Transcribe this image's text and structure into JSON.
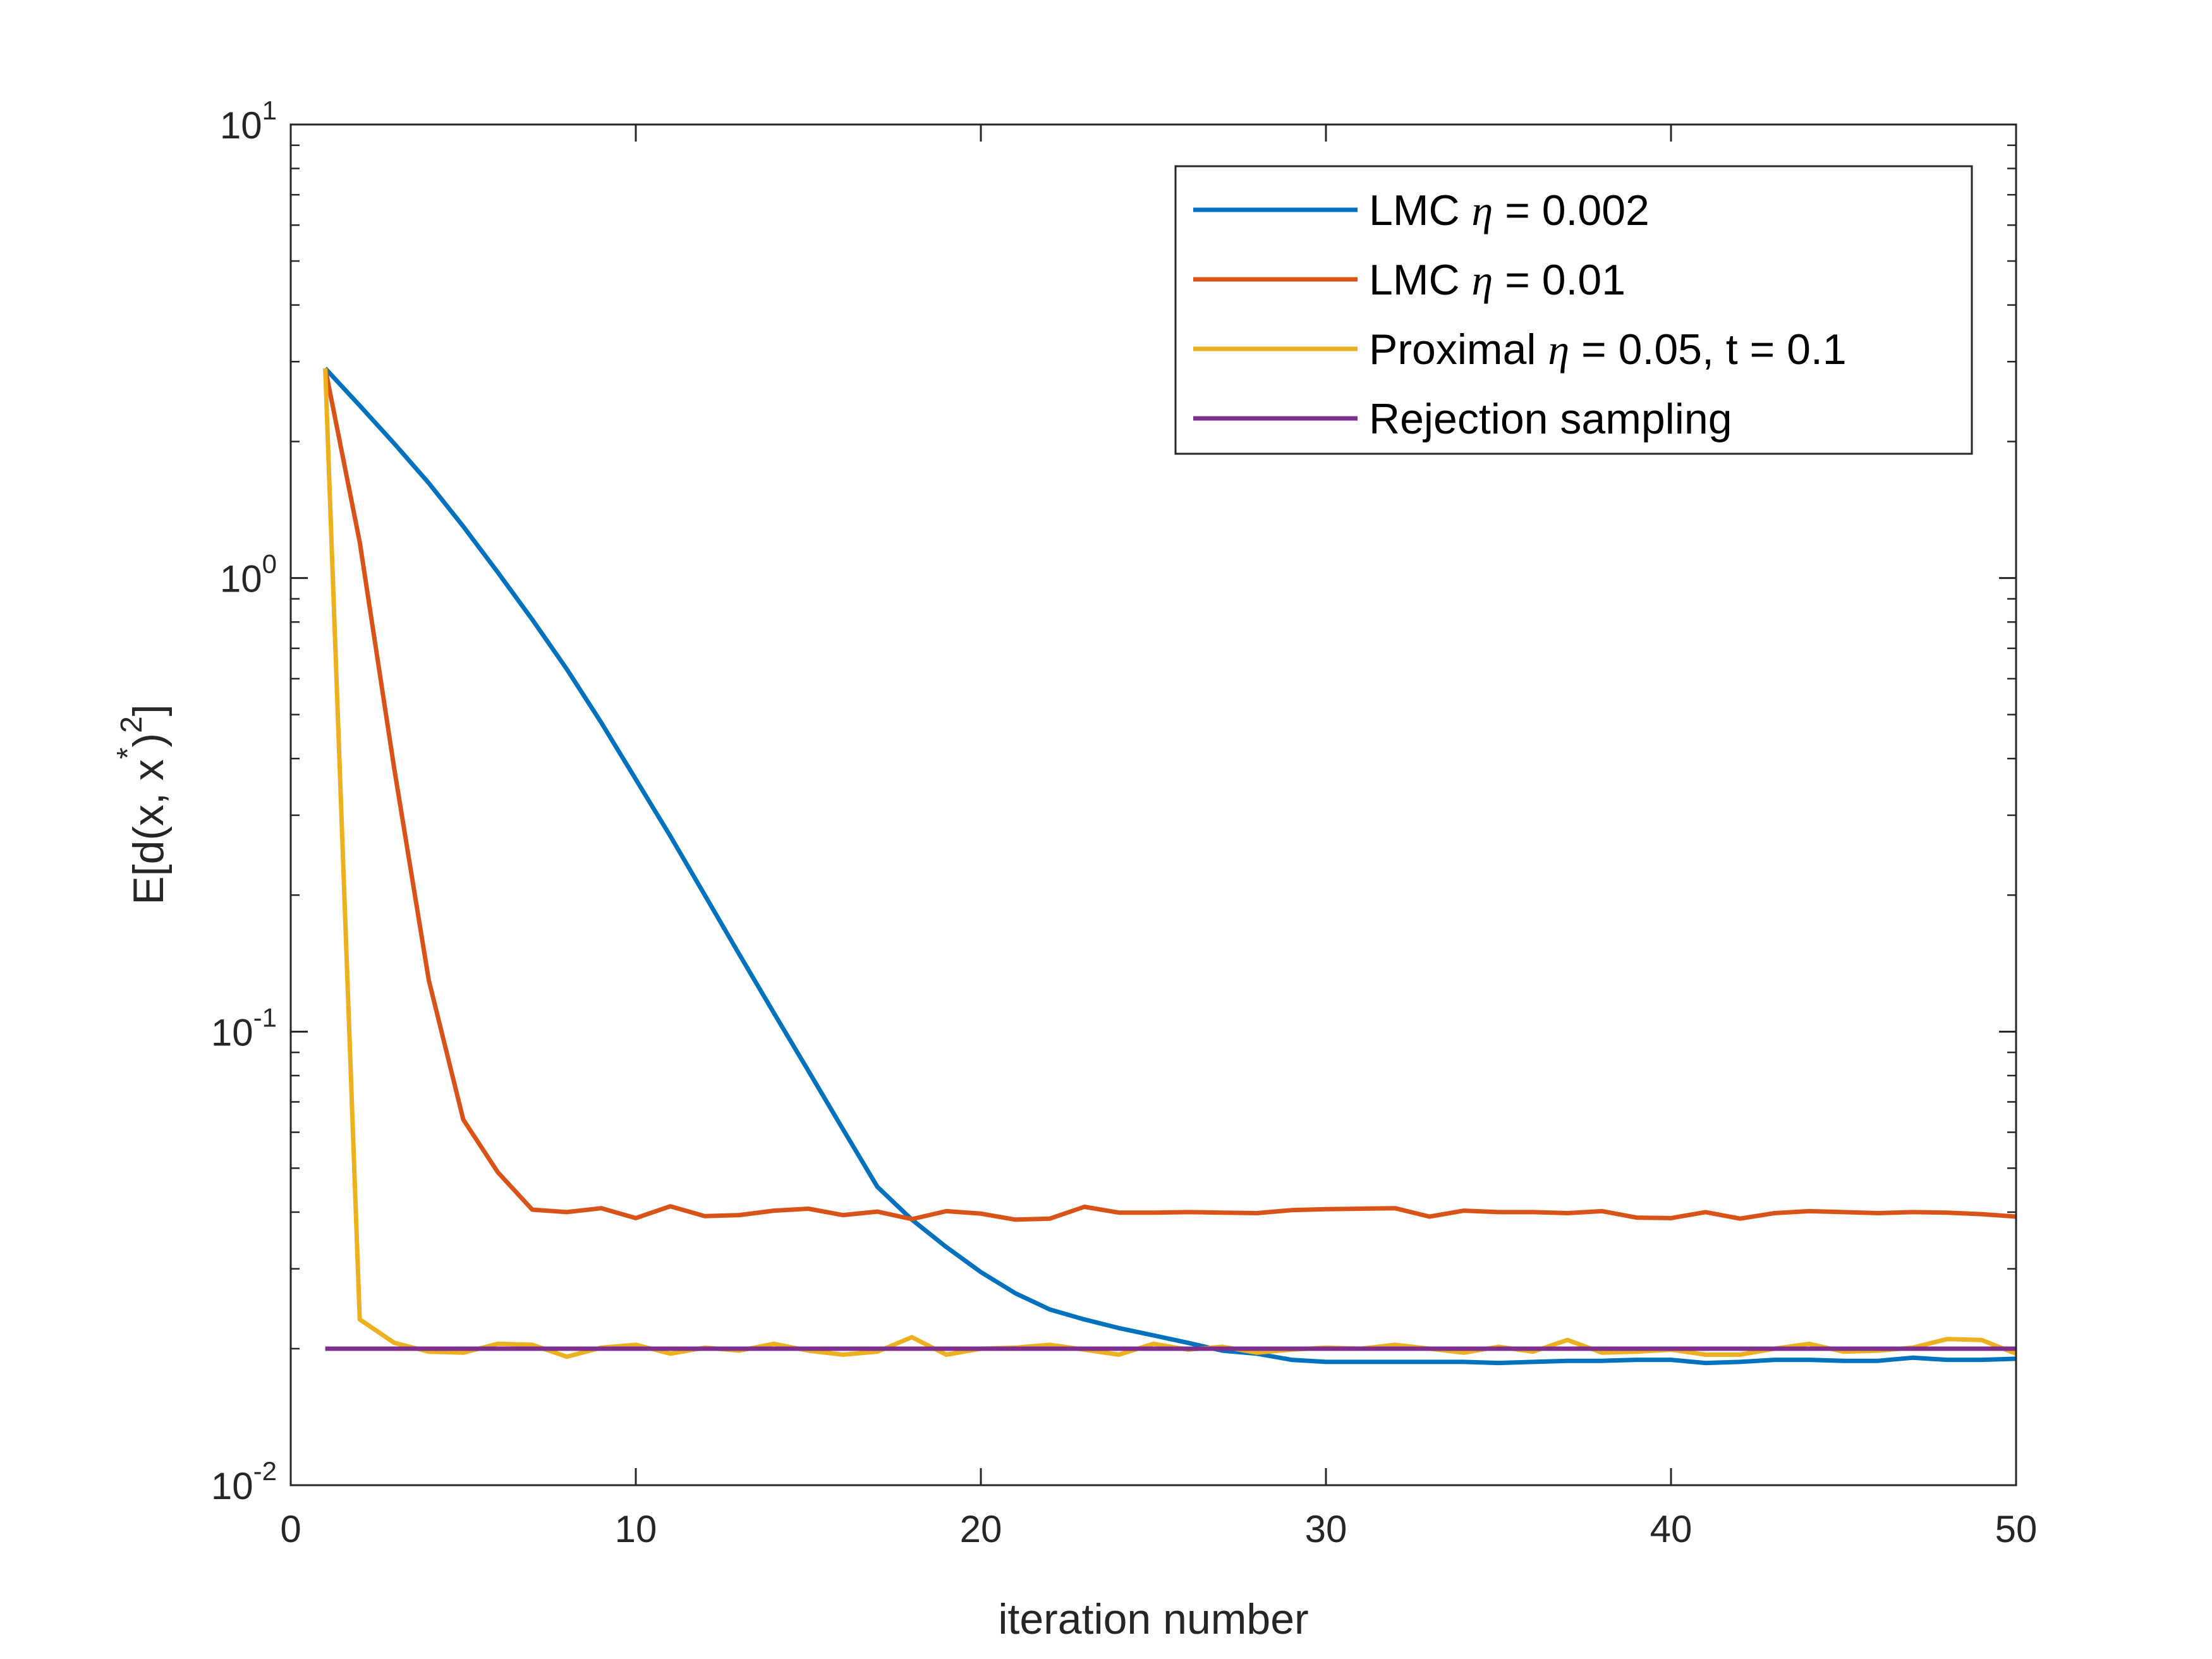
{
  "chart_data": {
    "type": "line",
    "title": "",
    "xlabel": "iteration number",
    "ylabel_parts": {
      "base": "E[d(x, x",
      "star": "*",
      "close": ")",
      "power": "2",
      "end": "]"
    },
    "xlim": [
      0,
      50
    ],
    "ylim": [
      0.01,
      10
    ],
    "yscale": "log",
    "grid": false,
    "legend_position": "top-right",
    "x_ticks": [
      0,
      10,
      20,
      30,
      40,
      50
    ],
    "x_tick_labels": [
      "0",
      "10",
      "20",
      "30",
      "40",
      "50"
    ],
    "y_ticks": [
      {
        "value": 10,
        "base": "10",
        "exp": "1"
      },
      {
        "value": 1,
        "base": "10",
        "exp": "0"
      },
      {
        "value": 0.1,
        "base": "10",
        "exp": "-1"
      },
      {
        "value": 0.01,
        "base": "10",
        "exp": "-2"
      }
    ],
    "series": [
      {
        "name": "LMC η = 0.002",
        "legend": {
          "pre": "LMC ",
          "eta": "η",
          "post": " = 0.002"
        },
        "color": "#0072BD",
        "x": [
          1,
          2,
          3,
          4,
          5,
          6,
          7,
          8,
          9,
          10,
          11,
          12,
          13,
          14,
          15,
          16,
          17,
          18,
          19,
          20,
          21,
          22,
          23,
          24,
          25,
          26,
          27,
          28,
          29,
          30,
          31,
          32,
          33,
          34,
          35,
          36,
          37,
          38,
          39,
          40,
          41,
          42,
          43,
          44,
          45,
          46,
          47,
          48,
          49,
          50
        ],
        "values": [
          2.9,
          2.4,
          1.98,
          1.62,
          1.3,
          1.03,
          0.81,
          0.63,
          0.48,
          0.36,
          0.27,
          0.2,
          0.148,
          0.11,
          0.082,
          0.061,
          0.0455,
          0.0385,
          0.0335,
          0.0295,
          0.0265,
          0.0244,
          0.0232,
          0.0222,
          0.0214,
          0.0206,
          0.0198,
          0.0195,
          0.0189,
          0.0187,
          0.0187,
          0.0187,
          0.0187,
          0.0187,
          0.0186,
          0.0187,
          0.0188,
          0.0188,
          0.0189,
          0.0189,
          0.0186,
          0.0187,
          0.0189,
          0.0189,
          0.0188,
          0.0188,
          0.0191,
          0.0189,
          0.0189,
          0.019
        ]
      },
      {
        "name": "LMC η = 0.01",
        "legend": {
          "pre": "LMC ",
          "eta": "η",
          "post": " = 0.01"
        },
        "color": "#D95319",
        "x": [
          1,
          2,
          3,
          4,
          5,
          6,
          7,
          8,
          9,
          10,
          11,
          12,
          13,
          14,
          15,
          16,
          17,
          18,
          19,
          20,
          21,
          22,
          23,
          24,
          25,
          26,
          27,
          28,
          29,
          30,
          31,
          32,
          33,
          34,
          35,
          36,
          37,
          38,
          39,
          40,
          41,
          42,
          43,
          44,
          45,
          46,
          47,
          48,
          49,
          50
        ],
        "values": [
          2.9,
          1.2,
          0.38,
          0.13,
          0.064,
          0.049,
          0.0405,
          0.04,
          0.0408,
          0.0388,
          0.0412,
          0.0392,
          0.0394,
          0.0403,
          0.0407,
          0.0394,
          0.0401,
          0.0386,
          0.0402,
          0.0397,
          0.0385,
          0.0387,
          0.0411,
          0.0399,
          0.0399,
          0.04,
          0.0399,
          0.0398,
          0.0404,
          0.0406,
          0.0407,
          0.0408,
          0.0391,
          0.0403,
          0.04,
          0.04,
          0.0398,
          0.0402,
          0.0389,
          0.0388,
          0.04,
          0.0387,
          0.0398,
          0.0402,
          0.04,
          0.0398,
          0.04,
          0.0399,
          0.0396,
          0.0391
        ]
      },
      {
        "name": "Proximal η = 0.05, t = 0.1",
        "legend": {
          "pre": "Proximal ",
          "eta": "η",
          "post": " = 0.05, t = 0.1"
        },
        "color": "#EDB120",
        "x": [
          1,
          2,
          3,
          4,
          5,
          6,
          7,
          8,
          9,
          10,
          11,
          12,
          13,
          14,
          15,
          16,
          17,
          18,
          19,
          20,
          21,
          22,
          23,
          24,
          25,
          26,
          27,
          28,
          29,
          30,
          31,
          32,
          33,
          34,
          35,
          36,
          37,
          38,
          39,
          40,
          41,
          42,
          43,
          44,
          45,
          46,
          47,
          48,
          49,
          50
        ],
        "values": [
          2.9,
          0.0232,
          0.0206,
          0.0197,
          0.0196,
          0.0205,
          0.0204,
          0.0192,
          0.0201,
          0.0204,
          0.0195,
          0.0201,
          0.0198,
          0.0205,
          0.0198,
          0.0194,
          0.0197,
          0.0212,
          0.0194,
          0.02,
          0.0201,
          0.0204,
          0.0199,
          0.0194,
          0.0205,
          0.0199,
          0.0202,
          0.0196,
          0.0199,
          0.0201,
          0.02,
          0.0204,
          0.02,
          0.0196,
          0.0202,
          0.0197,
          0.0209,
          0.0196,
          0.0197,
          0.0199,
          0.0194,
          0.0194,
          0.02,
          0.0205,
          0.0197,
          0.0198,
          0.0201,
          0.021,
          0.0209,
          0.0195
        ]
      },
      {
        "name": "Rejection sampling",
        "legend": {
          "pre": "Rejection sampling",
          "eta": "",
          "post": ""
        },
        "color": "#7E2F8E",
        "x": [
          1,
          50
        ],
        "values": [
          0.02,
          0.02
        ]
      }
    ]
  }
}
